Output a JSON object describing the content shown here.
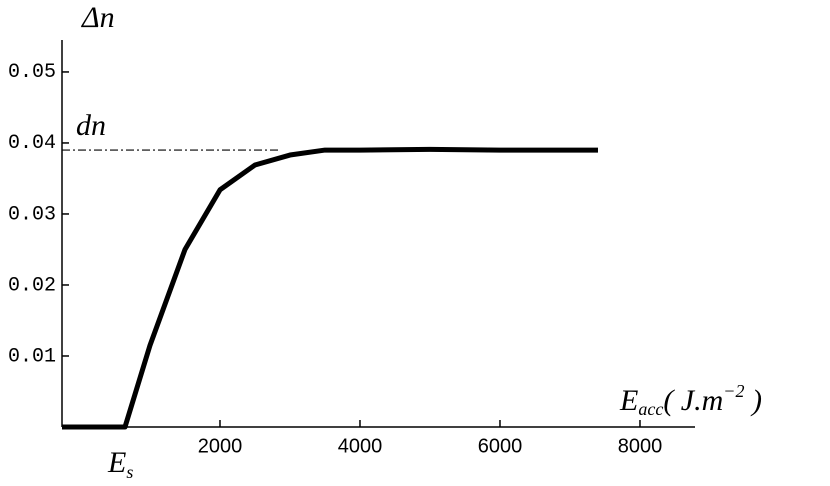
{
  "chart_data": {
    "type": "line",
    "y_label": "Δn",
    "x_label": {
      "base": "E",
      "sub": "acc",
      "rest": "( J.m",
      "sup": "−2",
      "end": " )"
    },
    "x_marker": {
      "base": "E",
      "sub": "s"
    },
    "reference_line": {
      "value": 0.039,
      "x_end": 2857,
      "label": "dn",
      "color": "#000000"
    },
    "x": [
      -257,
      643,
      1000,
      1500,
      2000,
      2500,
      3000,
      3500,
      4000,
      5000,
      6000,
      7400
    ],
    "series": [
      {
        "name": "Δn",
        "color": "#000000",
        "values": [
          0,
          0,
          0.0115,
          0.025,
          0.0334,
          0.0369,
          0.0383,
          0.039,
          0.039,
          0.0391,
          0.039,
          0.039
        ]
      }
    ],
    "xlim": [
      -257,
      8786
    ],
    "ylim": [
      0,
      0.0545
    ],
    "xticks": [
      2000,
      4000,
      6000,
      8000
    ],
    "yticks": [
      0.01,
      0.02,
      0.03,
      0.04,
      0.05
    ],
    "grid": false
  }
}
